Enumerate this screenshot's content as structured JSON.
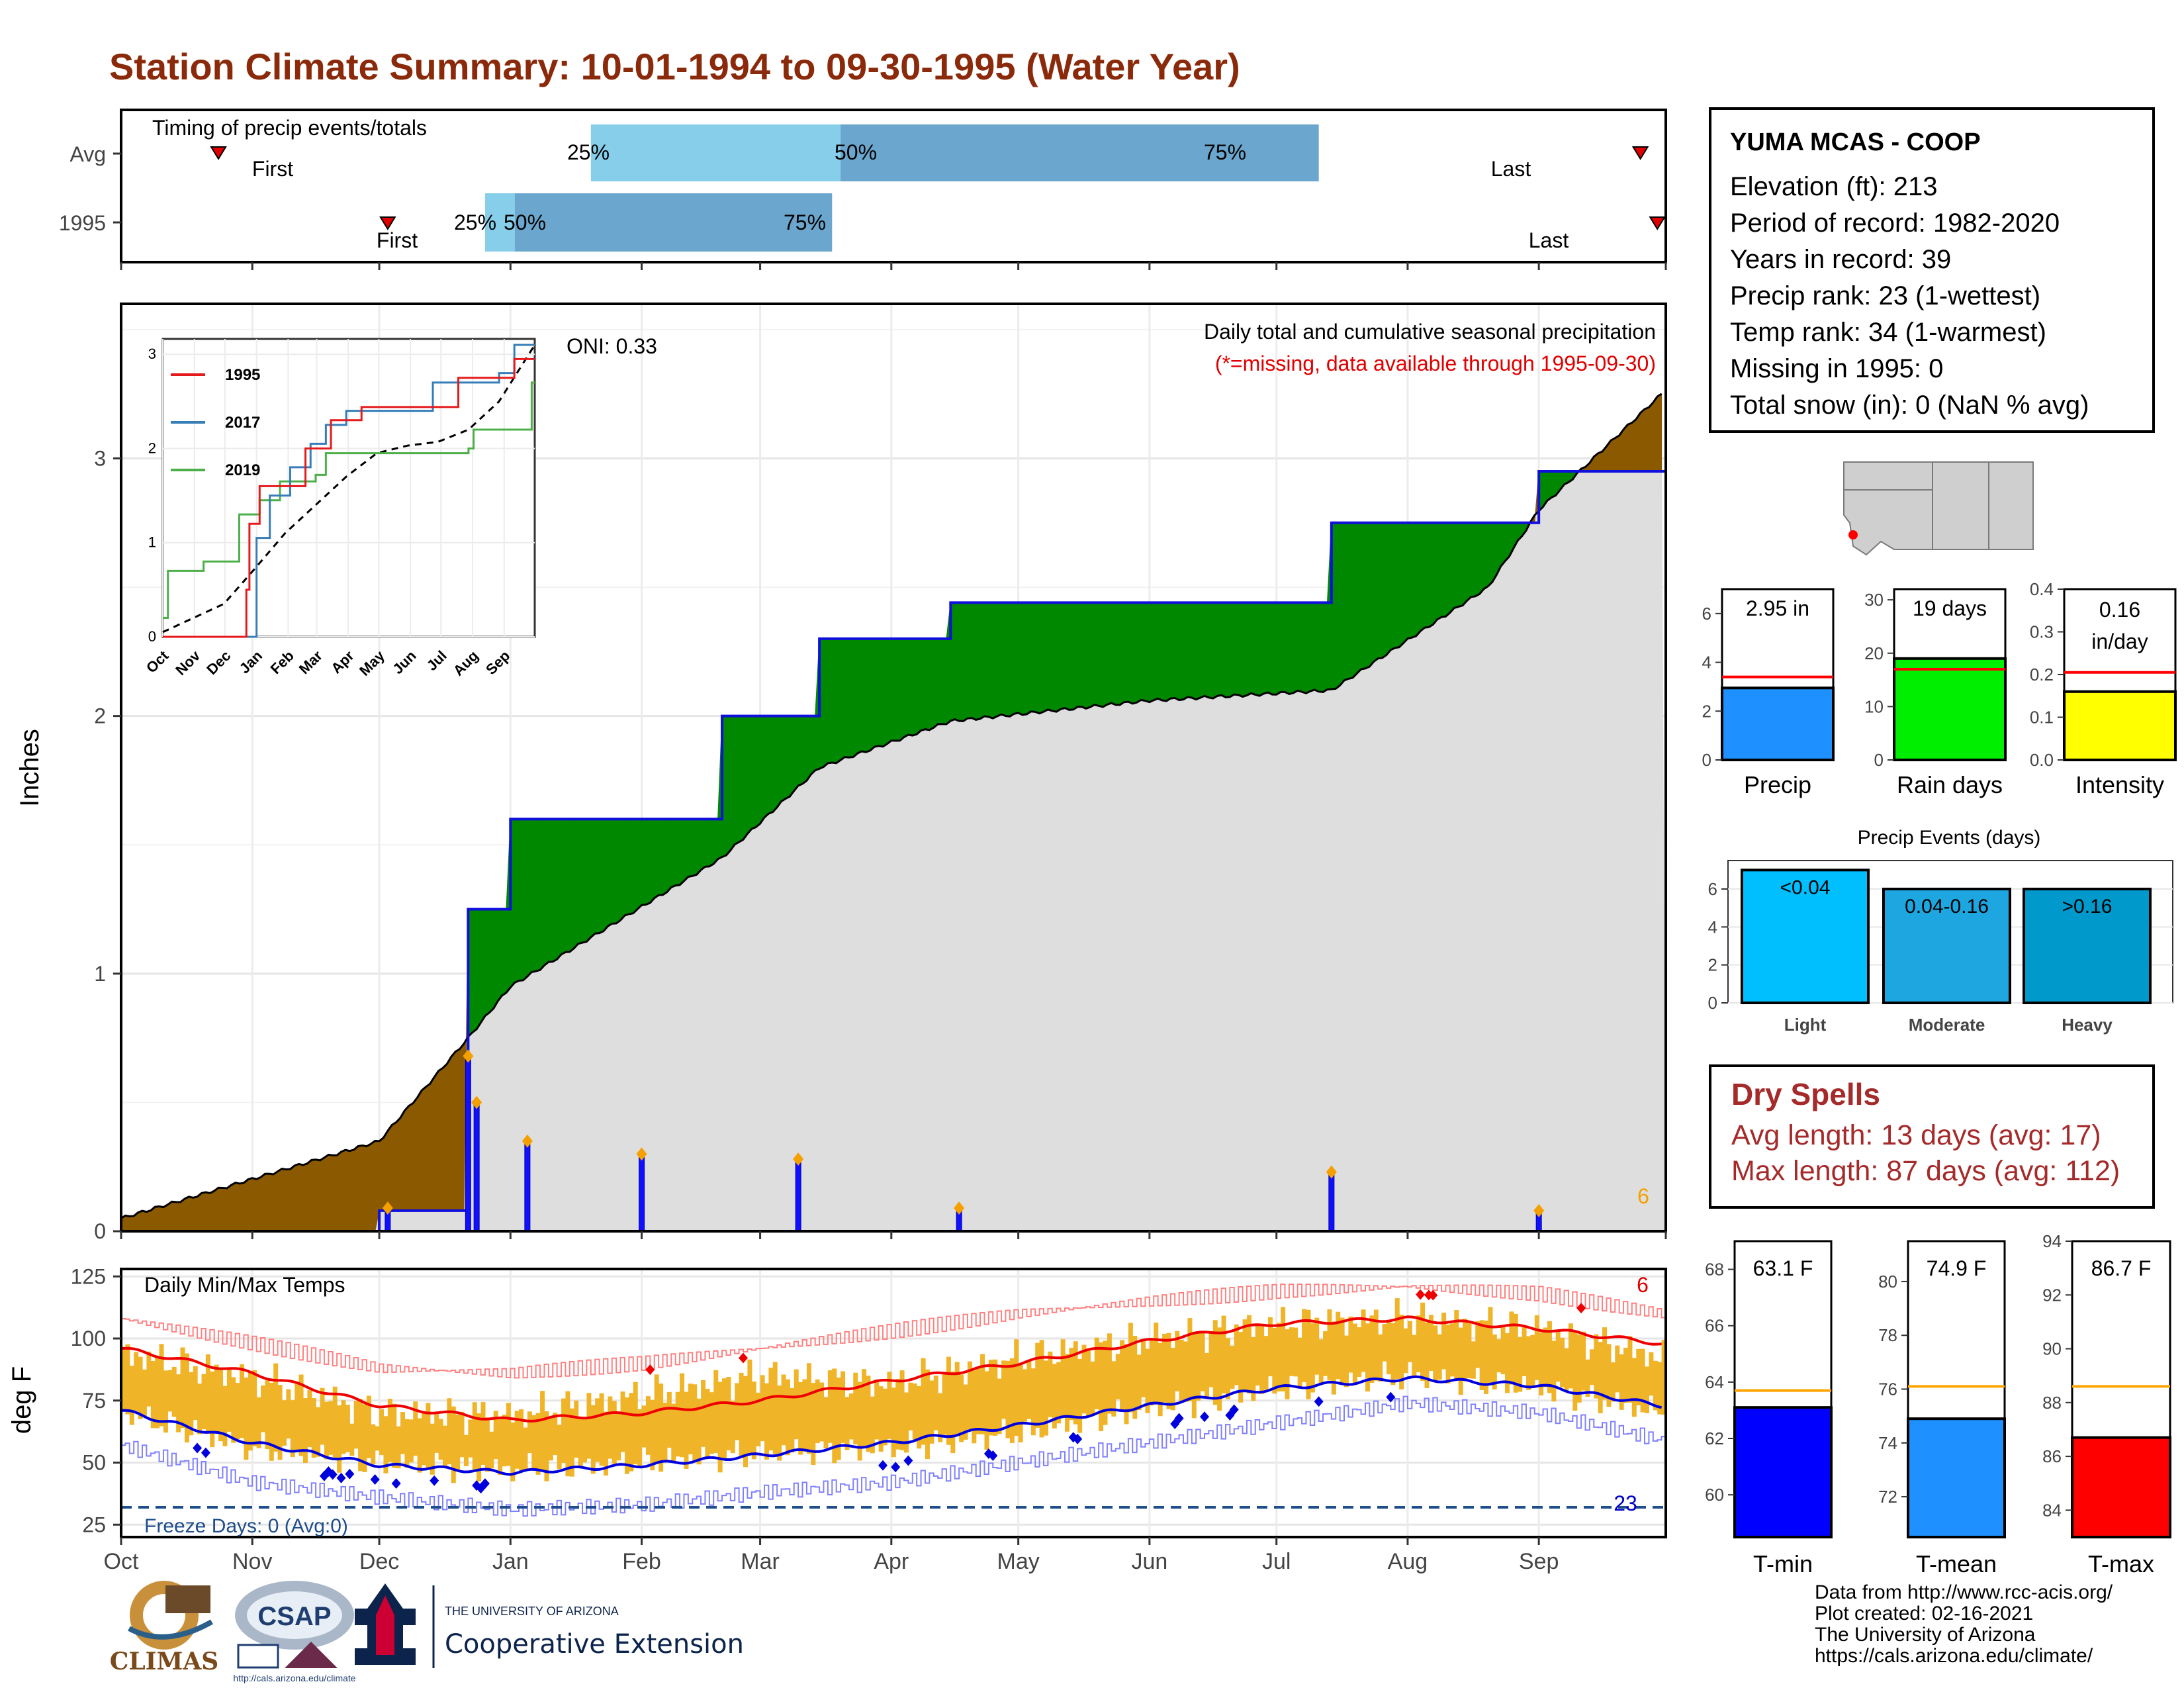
{
  "title": "Station Climate Summary: 10-01-1994 to 09-30-1995 (Water Year)",
  "timing": {
    "label": "Timing of precip events/totals",
    "rows": [
      "Avg",
      "1995"
    ],
    "avg": {
      "first": "First",
      "last": "Last",
      "p25": "25%",
      "p50": "50%",
      "p75": "75%"
    },
    "year": {
      "first": "First",
      "last": "Last",
      "p25": "25%",
      "p50": "50%",
      "p75": "75%"
    }
  },
  "station": {
    "name": "YUMA MCAS - COOP",
    "lines": [
      "Elevation (ft): 213",
      "Period of record: 1982-2020",
      "Years in record: 39",
      "Precip rank: 23 (1-wettest)",
      "Temp rank: 34 (1-warmest)",
      "Missing in 1995: 0",
      "Total snow (in): 0 (NaN % avg)"
    ]
  },
  "main_precip": {
    "ylabel": "Inches",
    "oni": "ONI: 0.33",
    "subtitle": "Daily total and cumulative seasonal precipitation",
    "missing_note": "(*=missing, data available through 1995-09-30)",
    "extreme_count": "6",
    "yticks": [
      "0",
      "1",
      "2",
      "3"
    ]
  },
  "inset": {
    "legend": [
      "1995",
      "2017",
      "2019"
    ],
    "colors": {
      "1995": "#e41a1c",
      "2017": "#377eb8",
      "2019": "#4daf4a"
    },
    "yticks": [
      "0",
      "1",
      "2",
      "3"
    ],
    "xticks": [
      "Oct",
      "Nov",
      "Dec",
      "Jan",
      "Feb",
      "Mar",
      "Apr",
      "May",
      "Jun",
      "Jul",
      "Aug",
      "Sep"
    ]
  },
  "months": [
    "Oct",
    "Nov",
    "Dec",
    "Jan",
    "Feb",
    "Mar",
    "Apr",
    "May",
    "Jun",
    "Jul",
    "Aug",
    "Sep"
  ],
  "temps": {
    "ylabel": "deg F",
    "label": "Daily Min/Max Temps",
    "hot_count": "6",
    "cold_count": "23",
    "freeze": "Freeze Days: 0 (Avg:0)",
    "yticks": [
      "25",
      "50",
      "75",
      "100",
      "125"
    ]
  },
  "mini_bars": [
    {
      "name": "Precip",
      "value_label": "2.95 in",
      "yticks": [
        "0",
        "2",
        "4",
        "6"
      ]
    },
    {
      "name": "Rain days",
      "value_label": "19 days",
      "yticks": [
        "0",
        "10",
        "20",
        "30"
      ]
    },
    {
      "name": "Intensity",
      "value_label": "0.16 in/day",
      "yticks": [
        "0.0",
        "0.1",
        "0.2",
        "0.3",
        "0.4"
      ]
    }
  ],
  "events": {
    "title": "Precip Events (days)",
    "yticks": [
      "0",
      "2",
      "4",
      "6"
    ],
    "bars": [
      {
        "name": "Light",
        "label": "<0.04"
      },
      {
        "name": "Moderate",
        "label": "0.04-0.16"
      },
      {
        "name": "Heavy",
        "label": ">0.16"
      }
    ]
  },
  "dry_spells": {
    "title": "Dry Spells",
    "avg": "Avg length: 13 days (avg: 17)",
    "max": "Max length: 87 days (avg: 112)"
  },
  "temp_bars": [
    {
      "name": "T-min",
      "value_label": "63.1 F",
      "yticks": [
        "60",
        "62",
        "64",
        "66",
        "68"
      ]
    },
    {
      "name": "T-mean",
      "value_label": "74.9 F",
      "yticks": [
        "72",
        "74",
        "76",
        "78",
        "80"
      ]
    },
    {
      "name": "T-max",
      "value_label": "86.7 F",
      "yticks": [
        "84",
        "86",
        "88",
        "90",
        "92",
        "94"
      ]
    }
  ],
  "credits": [
    "Data from http://www.rcc-acis.org/",
    "Plot created: 02-16-2021",
    "The University of Arizona",
    "https://cals.arizona.edu/climate/"
  ],
  "logos": {
    "climas": "CLIMAS",
    "csap": "CSAP",
    "csap_url": "http://cals.arizona.edu/climate",
    "ua_top": "THE UNIVERSITY OF ARIZONA",
    "ua_bottom": "Cooperative Extension"
  },
  "chart_data": [
    {
      "type": "bar",
      "title": "Timing of precip events/totals",
      "series": [
        {
          "name": "Avg",
          "values": {
            "first": "Oct 24",
            "p25": "Jan 20",
            "p50": "Mar 20",
            "p75": "Jul 11",
            "last": "Sep 25"
          }
        },
        {
          "name": "1995",
          "values": {
            "first": "Dec 3",
            "p25": "Dec 26",
            "p50": "Jan 2",
            "p75": "Mar 18",
            "last": "Sep 29"
          }
        }
      ]
    },
    {
      "type": "area",
      "title": "Daily total and cumulative seasonal precipitation",
      "ylabel": "Inches",
      "ylim": [
        0,
        3.6
      ],
      "x_dates": [
        "Oct 1",
        "Dec 1",
        "Dec 22",
        "Jan 1",
        "Feb 20",
        "Mar 15",
        "Apr 15",
        "Jun 1",
        "Jul 14",
        "Aug 20",
        "Sep 1",
        "Sep 30"
      ],
      "series": [
        {
          "name": "1995",
          "values": [
            0,
            0.08,
            1.25,
            1.6,
            2.0,
            2.3,
            2.44,
            2.44,
            2.75,
            2.75,
            2.95,
            2.95
          ]
        },
        {
          "name": "Avg",
          "values": [
            0.05,
            0.35,
            0.75,
            0.95,
            1.45,
            1.8,
            1.98,
            2.06,
            2.1,
            2.5,
            2.8,
            3.25
          ]
        }
      ],
      "daily": [
        {
          "date": "Dec 3",
          "value": 0.09
        },
        {
          "date": "Dec 22",
          "value": 0.68
        },
        {
          "date": "Dec 24",
          "value": 0.5
        },
        {
          "date": "Jan 5",
          "value": 0.35
        },
        {
          "date": "Feb 1",
          "value": 0.3
        },
        {
          "date": "Mar 10",
          "value": 0.28
        },
        {
          "date": "Apr 17",
          "value": 0.09
        },
        {
          "date": "Jul 14",
          "value": 0.23
        },
        {
          "date": "Sep 1",
          "value": 0.08
        }
      ]
    },
    {
      "type": "line",
      "title": "Daily Min/Max Temps",
      "ylabel": "deg F",
      "ylim": [
        20,
        128
      ],
      "x_dates": [
        "Oct 1",
        "Nov 1",
        "Dec 1",
        "Jan 1",
        "Feb 1",
        "Mar 1",
        "Apr 1",
        "May 1",
        "Jun 1",
        "Jul 1",
        "Aug 1",
        "Sep 1",
        "Sep 30"
      ],
      "series": [
        {
          "name": "Avg max",
          "values": [
            96,
            86,
            73,
            67,
            70,
            75,
            83,
            90,
            99,
            106,
            108,
            104,
            98
          ]
        },
        {
          "name": "Avg min",
          "values": [
            71,
            58,
            49,
            46,
            49,
            53,
            58,
            65,
            73,
            80,
            84,
            81,
            73
          ]
        },
        {
          "name": "Record max",
          "values": [
            108,
            98,
            88,
            86,
            90,
            96,
            103,
            110,
            115,
            119,
            121,
            118,
            110
          ]
        },
        {
          "name": "Record min",
          "values": [
            57,
            42,
            36,
            31,
            33,
            38,
            42,
            50,
            58,
            66,
            74,
            70,
            59
          ]
        },
        {
          "name": "1995 max",
          "values": [
            94,
            84,
            70,
            69,
            77,
            85,
            82,
            92,
            100,
            106,
            108,
            104,
            92
          ]
        },
        {
          "name": "1995 min",
          "values": [
            70,
            56,
            50,
            47,
            50,
            54,
            56,
            62,
            72,
            80,
            85,
            80,
            70
          ]
        }
      ],
      "freeze_line": 32
    },
    {
      "type": "bar",
      "categories": [
        "Precip",
        "Rain days",
        "Intensity"
      ],
      "values": [
        2.95,
        19,
        0.16
      ],
      "averages": [
        3.4,
        17,
        0.205
      ],
      "ylims": [
        [
          0,
          7
        ],
        [
          0,
          32
        ],
        [
          0,
          0.4
        ]
      ]
    },
    {
      "type": "bar",
      "title": "Precip Events (days)",
      "categories": [
        "Light",
        "Moderate",
        "Heavy"
      ],
      "values": [
        7,
        6,
        6
      ],
      "ylim": [
        0,
        7.5
      ]
    },
    {
      "type": "bar",
      "categories": [
        "T-min",
        "T-mean",
        "T-max"
      ],
      "values": [
        63.1,
        74.9,
        86.7
      ],
      "averages": [
        63.7,
        76.1,
        88.6
      ],
      "ylims": [
        [
          58.5,
          69
        ],
        [
          70.5,
          81.5
        ],
        [
          83,
          94
        ]
      ]
    }
  ]
}
